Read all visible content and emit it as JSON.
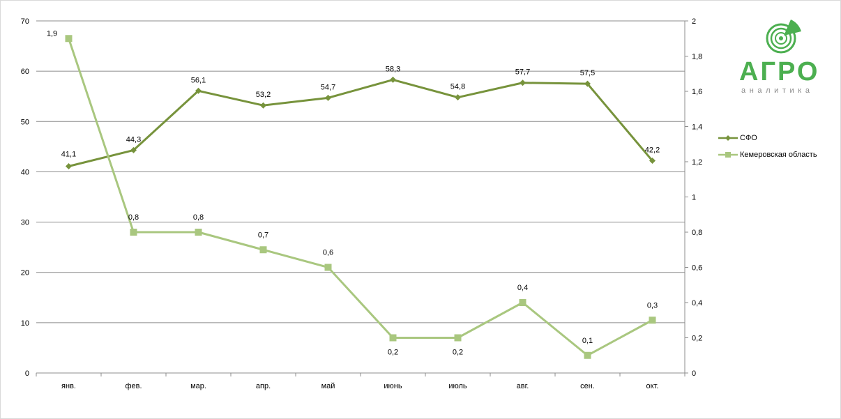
{
  "chart_data": {
    "type": "line",
    "categories": [
      "янв.",
      "фев.",
      "мар.",
      "апр.",
      "май",
      "июнь",
      "июль",
      "авг.",
      "сен.",
      "окт."
    ],
    "y_left": {
      "ticks": [
        "0",
        "10",
        "20",
        "30",
        "40",
        "50",
        "60",
        "70"
      ],
      "min": 0,
      "max": 70
    },
    "y_right": {
      "ticks": [
        "0",
        "0,2",
        "0,4",
        "0,6",
        "0,8",
        "1",
        "1,2",
        "1,4",
        "1,6",
        "1,8",
        "2"
      ],
      "min": 0,
      "max": 2
    },
    "grid": true,
    "legend_position": "right",
    "series": [
      {
        "name": "СФО",
        "axis": "left",
        "color": "#77933c",
        "marker": "diamond",
        "values": [
          41.1,
          44.3,
          56.1,
          53.2,
          54.7,
          58.3,
          54.8,
          57.7,
          57.5,
          42.2
        ],
        "labels": [
          "41,1",
          "44,3",
          "56,1",
          "53,2",
          "54,7",
          "58,3",
          "54,8",
          "57,7",
          "57,5",
          "42,2"
        ]
      },
      {
        "name": "Кемеровская область",
        "axis": "right",
        "color": "#a9c77f",
        "marker": "square",
        "values": [
          1.9,
          0.8,
          0.8,
          0.7,
          0.6,
          0.2,
          0.2,
          0.4,
          0.1,
          0.3
        ],
        "labels": [
          "1,9",
          "0,8",
          "0,8",
          "0,7",
          "0,6",
          "0,2",
          "0,2",
          "0,4",
          "0,1",
          "0,3"
        ]
      }
    ]
  },
  "logo": {
    "word": "АГРО",
    "sub": "аналитика",
    "color": "#4caf50"
  }
}
